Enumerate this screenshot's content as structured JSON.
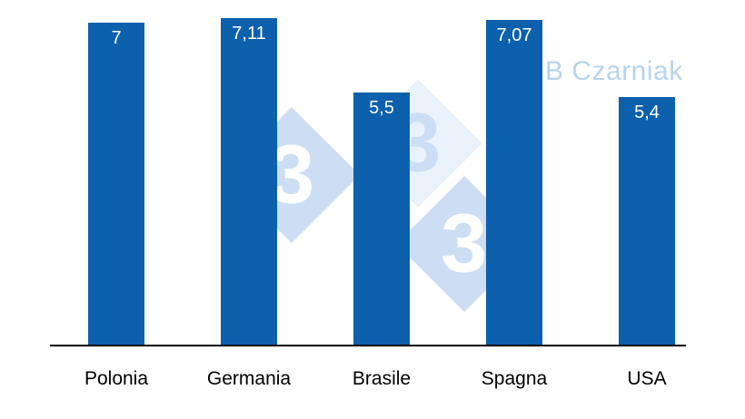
{
  "watermark": {
    "credit": "B Czarniak",
    "digits": [
      "3",
      "3",
      "3"
    ]
  },
  "chart_data": {
    "type": "bar",
    "categories": [
      "Polonia",
      "Germania",
      "Brasile",
      "Spagna",
      "USA"
    ],
    "values": [
      7,
      7.11,
      5.5,
      7.07,
      5.4
    ],
    "value_labels": [
      "7",
      "7,11",
      "5,5",
      "7,07",
      "5,4"
    ],
    "title": "",
    "xlabel": "",
    "ylabel": "",
    "ylim": [
      0,
      7.5
    ],
    "grid": false,
    "legend": false,
    "bar_color": "#0d60ac",
    "value_label_color": "#ffffff",
    "axis_color": "#000000"
  }
}
